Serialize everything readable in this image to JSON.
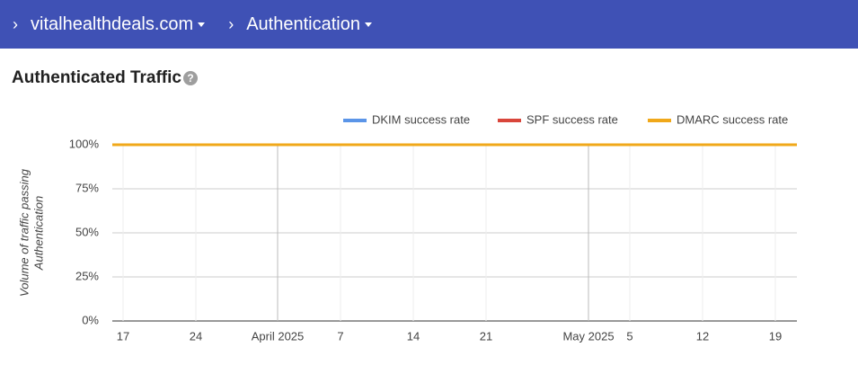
{
  "header": {
    "domain": "vitalhealthdeals.com",
    "section": "Authentication"
  },
  "panel_title": "Authenticated Traffic",
  "chart_data": {
    "type": "line",
    "y_label": [
      "Volume of traffic passing",
      "Authentication"
    ],
    "categories": [
      "17",
      "24",
      "April 2025",
      "7",
      "14",
      "21",
      "May 2025",
      "5",
      "12",
      "19"
    ],
    "series": [
      {
        "name": "DKIM success rate",
        "color": "#5b95e8",
        "values": [
          100,
          100,
          100,
          100,
          100,
          100,
          100,
          100,
          100,
          100
        ]
      },
      {
        "name": "SPF success rate",
        "color": "#d9463b",
        "values": [
          100,
          100,
          100,
          100,
          100,
          100,
          100,
          100,
          100,
          100
        ]
      },
      {
        "name": "DMARC success rate",
        "color": "#f0a81a",
        "values": [
          100,
          100,
          100,
          100,
          100,
          100,
          100,
          100,
          100,
          100
        ]
      }
    ],
    "ylim": [
      0,
      100
    ],
    "yticks": [
      {
        "value": 0,
        "label": "0%"
      },
      {
        "value": 25,
        "label": "25%"
      },
      {
        "value": 50,
        "label": "50%"
      },
      {
        "value": 75,
        "label": "75%"
      },
      {
        "value": 100,
        "label": "100%"
      }
    ],
    "grid": true,
    "legend": "top-right"
  }
}
